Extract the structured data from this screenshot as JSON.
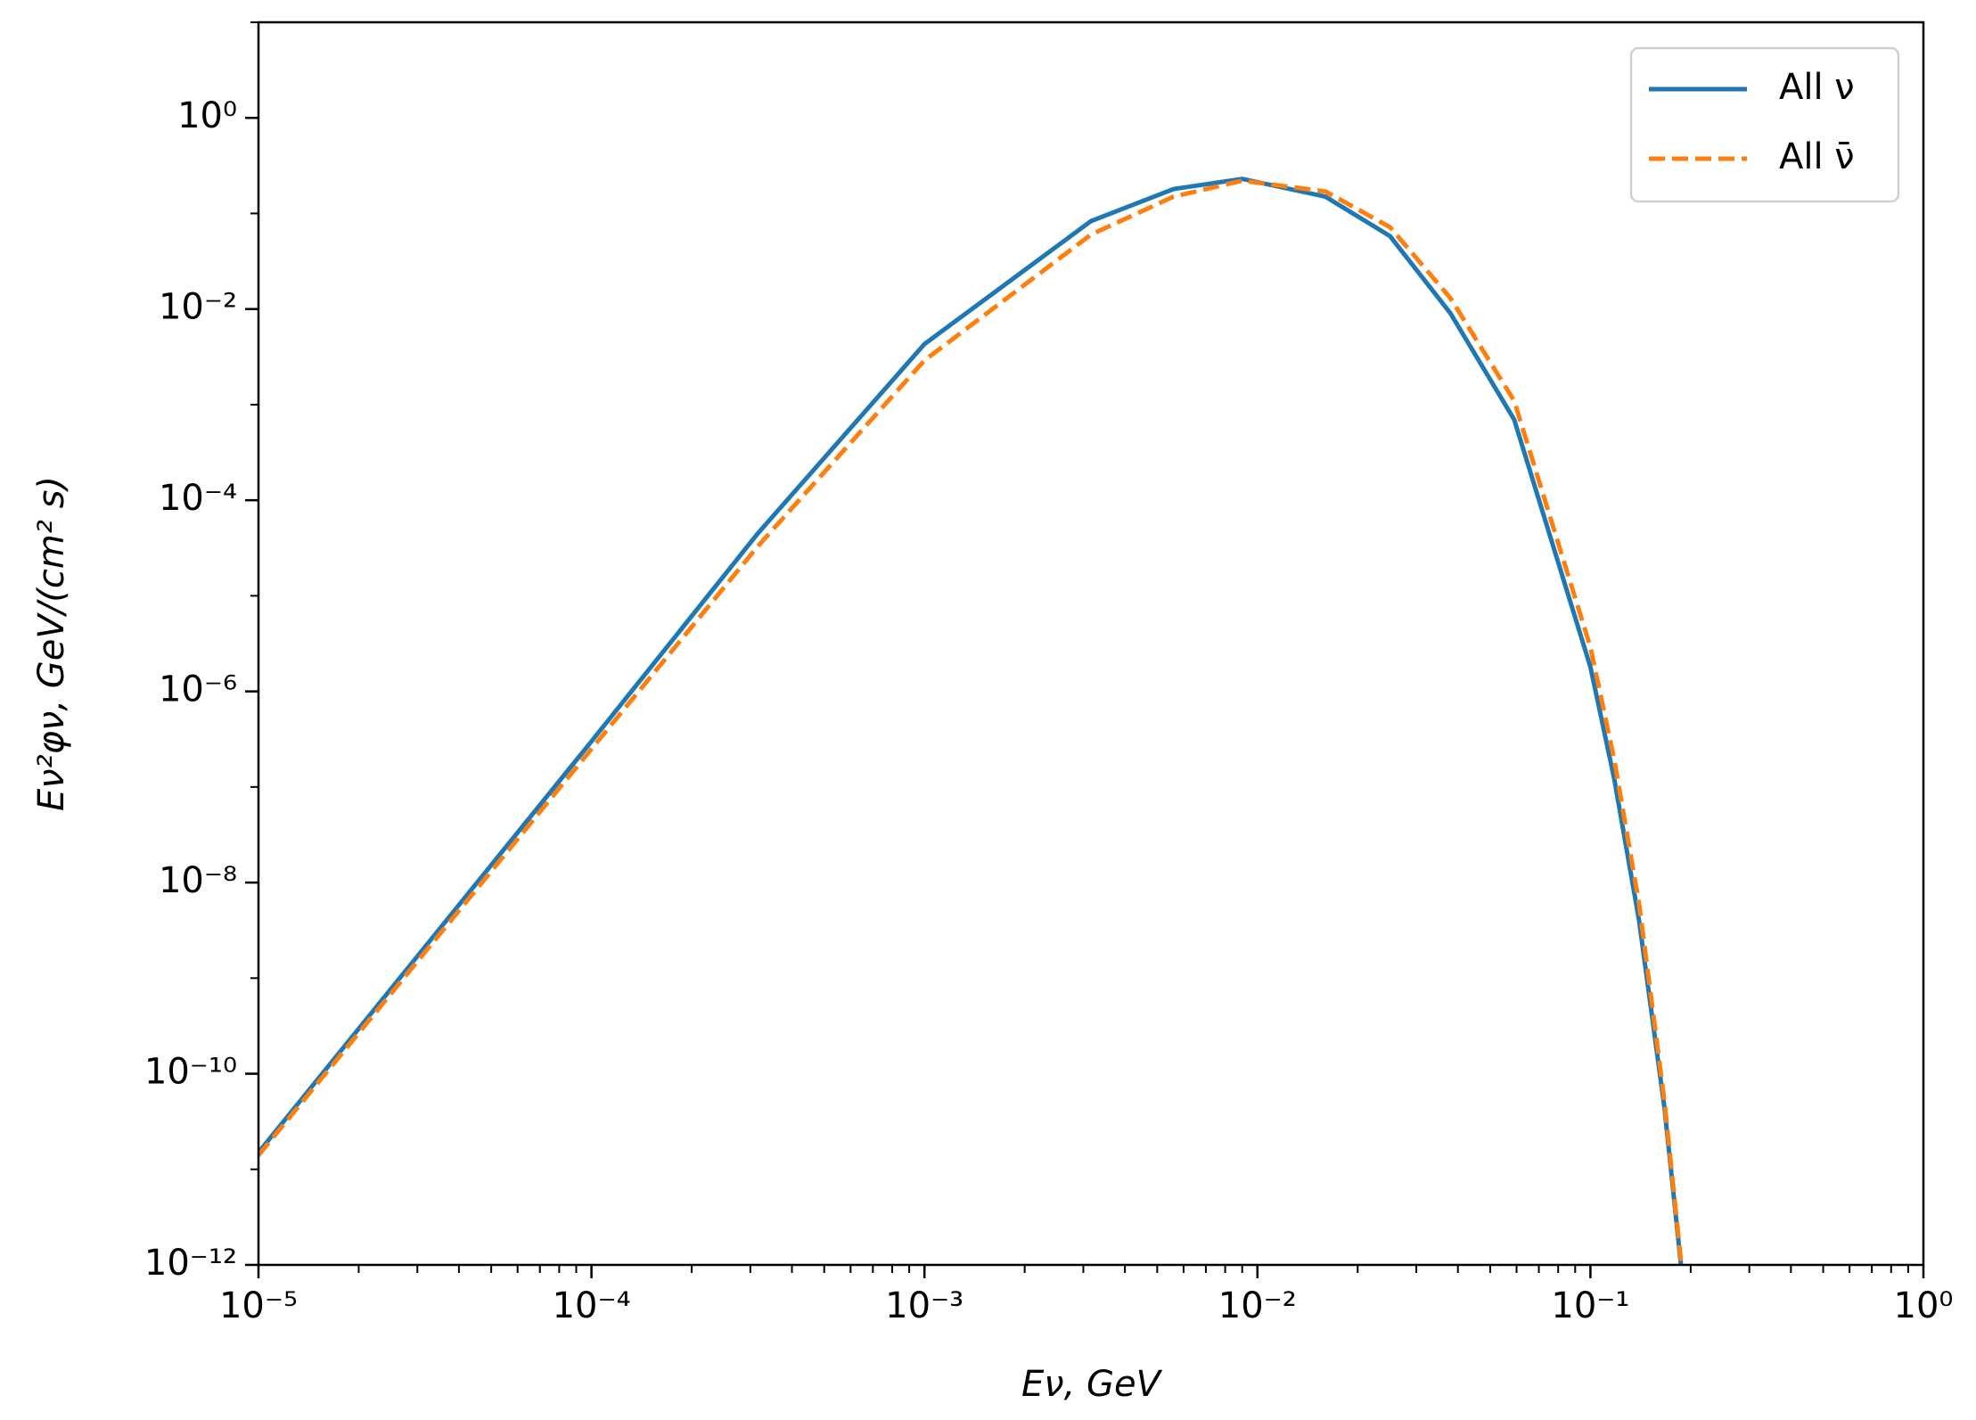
{
  "chart_data": {
    "type": "line",
    "xlabel": "Eν, GeV",
    "ylabel": "Eν²φν, GeV/(cm² s)",
    "xscale": "log",
    "yscale": "log",
    "xlim": [
      1e-05,
      1
    ],
    "ylim": [
      1e-12,
      10
    ],
    "xticks": [
      {
        "value": 1e-05,
        "label": "10⁻⁵"
      },
      {
        "value": 0.0001,
        "label": "10⁻⁴"
      },
      {
        "value": 0.001,
        "label": "10⁻³"
      },
      {
        "value": 0.01,
        "label": "10⁻²"
      },
      {
        "value": 0.1,
        "label": "10⁻¹"
      },
      {
        "value": 1,
        "label": "10⁰"
      }
    ],
    "yticks": [
      {
        "value": 1e-12,
        "label": "10⁻¹²"
      },
      {
        "value": 1e-10,
        "label": "10⁻¹⁰"
      },
      {
        "value": 1e-08,
        "label": "10⁻⁸"
      },
      {
        "value": 1e-06,
        "label": "10⁻⁶"
      },
      {
        "value": 0.0001,
        "label": "10⁻⁴"
      },
      {
        "value": 0.01,
        "label": "10⁻²"
      },
      {
        "value": 1,
        "label": "10⁰"
      }
    ],
    "legend": "upper right",
    "x": [
      1e-05,
      0.0001,
      0.000316,
      0.001,
      0.00316,
      0.0056,
      0.009,
      0.016,
      0.025,
      0.038,
      0.059,
      0.1,
      0.118,
      0.14,
      0.167,
      0.187
    ],
    "series": [
      {
        "name": "All ν",
        "color": "#1f77b4",
        "dash": false,
        "values": [
          1.5e-11,
          3e-07,
          4.5e-05,
          0.0043,
          0.083,
          0.18,
          0.23,
          0.15,
          0.058,
          0.009,
          0.0007,
          1.8e-06,
          1.2e-07,
          4e-09,
          4.3e-11,
          1e-12
        ]
      },
      {
        "name": "All ν̄",
        "color": "#ff7f0e",
        "dash": true,
        "values": [
          1.4e-11,
          2.5e-07,
          3.3e-05,
          0.0029,
          0.06,
          0.15,
          0.22,
          0.17,
          0.072,
          0.013,
          0.0011,
          2.9e-06,
          1.9e-07,
          6e-09,
          5e-11,
          1.1e-12
        ]
      }
    ]
  }
}
